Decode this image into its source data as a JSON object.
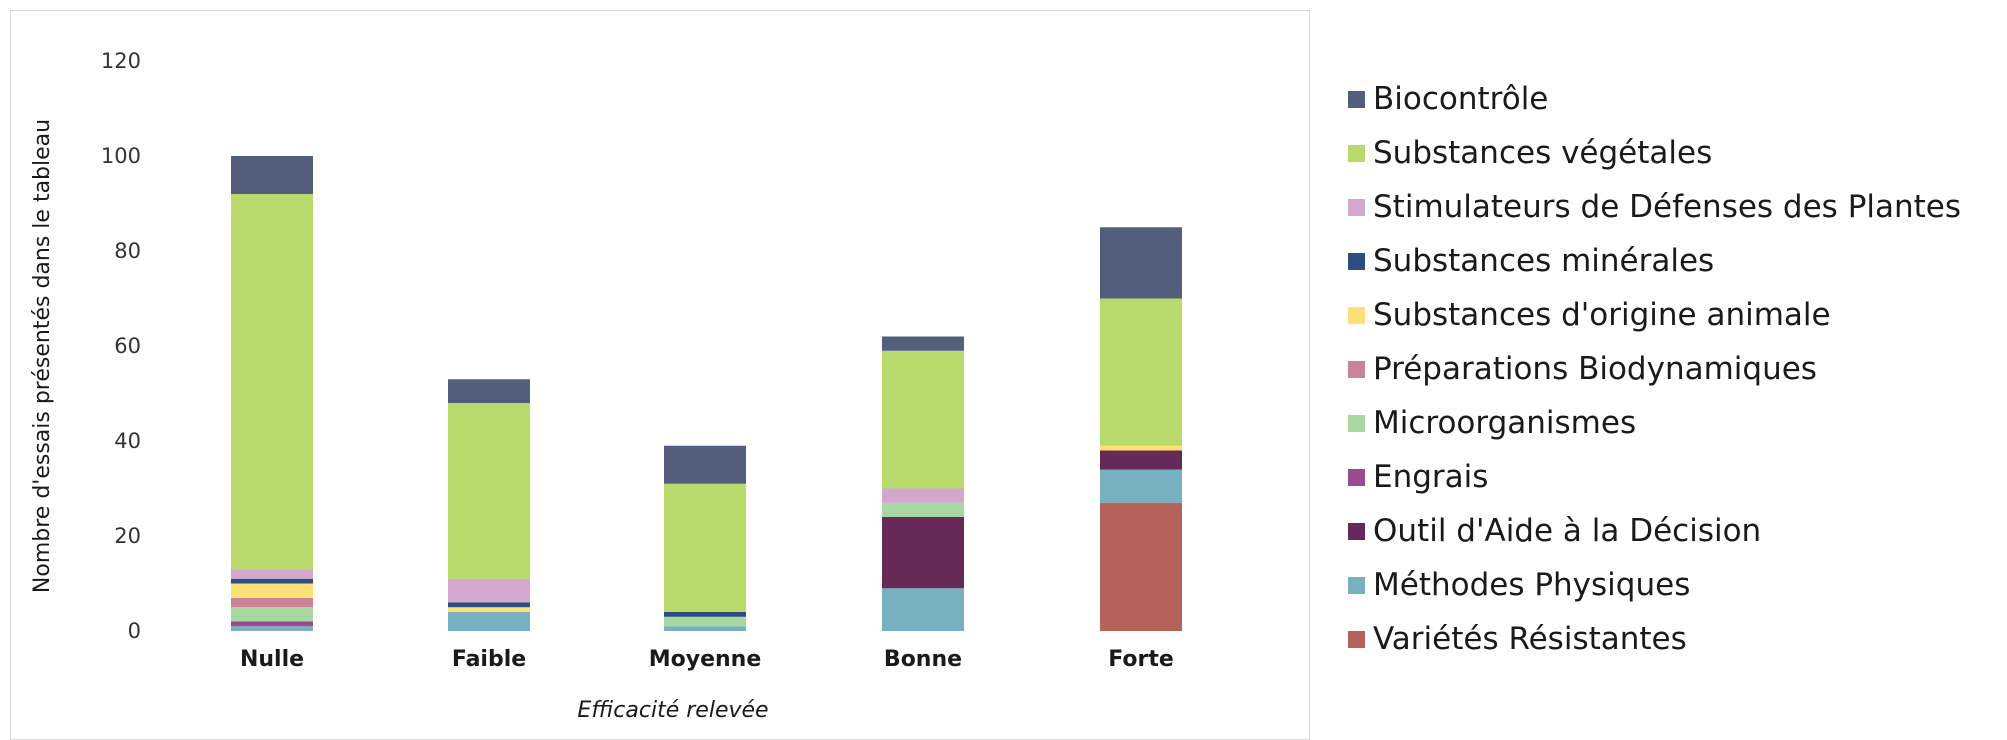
{
  "chart_data": {
    "type": "bar",
    "stacked": true,
    "ylabel": "Nombre d'essais présentés dans le tableau",
    "xlabel": "Efficacité relevée",
    "ylim": [
      0,
      120
    ],
    "yticks": [
      "0",
      "20",
      "40",
      "60",
      "80",
      "100",
      "120"
    ],
    "grid": false,
    "legend_position": "right",
    "categories": [
      "Nulle",
      "Faible",
      "Moyenne",
      "Bonne",
      "Forte"
    ],
    "series": [
      {
        "name": "Variétés Résistantes",
        "color": "#b5625a",
        "values": [
          0,
          0,
          0,
          0,
          27
        ]
      },
      {
        "name": "Méthodes Physiques",
        "color": "#79b0c1",
        "values": [
          1,
          4,
          1,
          9,
          7
        ]
      },
      {
        "name": "Outil d'Aide à la Décision",
        "color": "#662a58",
        "values": [
          0,
          0,
          0,
          15,
          4
        ]
      },
      {
        "name": "Engrais",
        "color": "#9c4a91",
        "values": [
          1,
          0,
          0,
          0,
          0
        ]
      },
      {
        "name": "Microorganismes",
        "color": "#a8d7a2",
        "values": [
          3,
          0,
          2,
          3,
          0
        ]
      },
      {
        "name": "Préparations Biodynamiques",
        "color": "#cc8399",
        "values": [
          2,
          0,
          0,
          0,
          0
        ]
      },
      {
        "name": "Substances d'origine animale",
        "color": "#fde177",
        "values": [
          3,
          1,
          0,
          0,
          1
        ]
      },
      {
        "name": "Substances minérales",
        "color": "#2e4d80",
        "values": [
          1,
          1,
          1,
          0,
          0
        ]
      },
      {
        "name": "Stimulateurs de Défenses des Plantes",
        "color": "#d4a8cc",
        "values": [
          2,
          5,
          0,
          3,
          0
        ]
      },
      {
        "name": "Substances végétales",
        "color": "#b8da6c",
        "values": [
          79,
          37,
          27,
          29,
          31
        ]
      },
      {
        "name": "Biocontrôle",
        "color": "#525e7c",
        "values": [
          8,
          5,
          8,
          3,
          15
        ]
      }
    ]
  }
}
